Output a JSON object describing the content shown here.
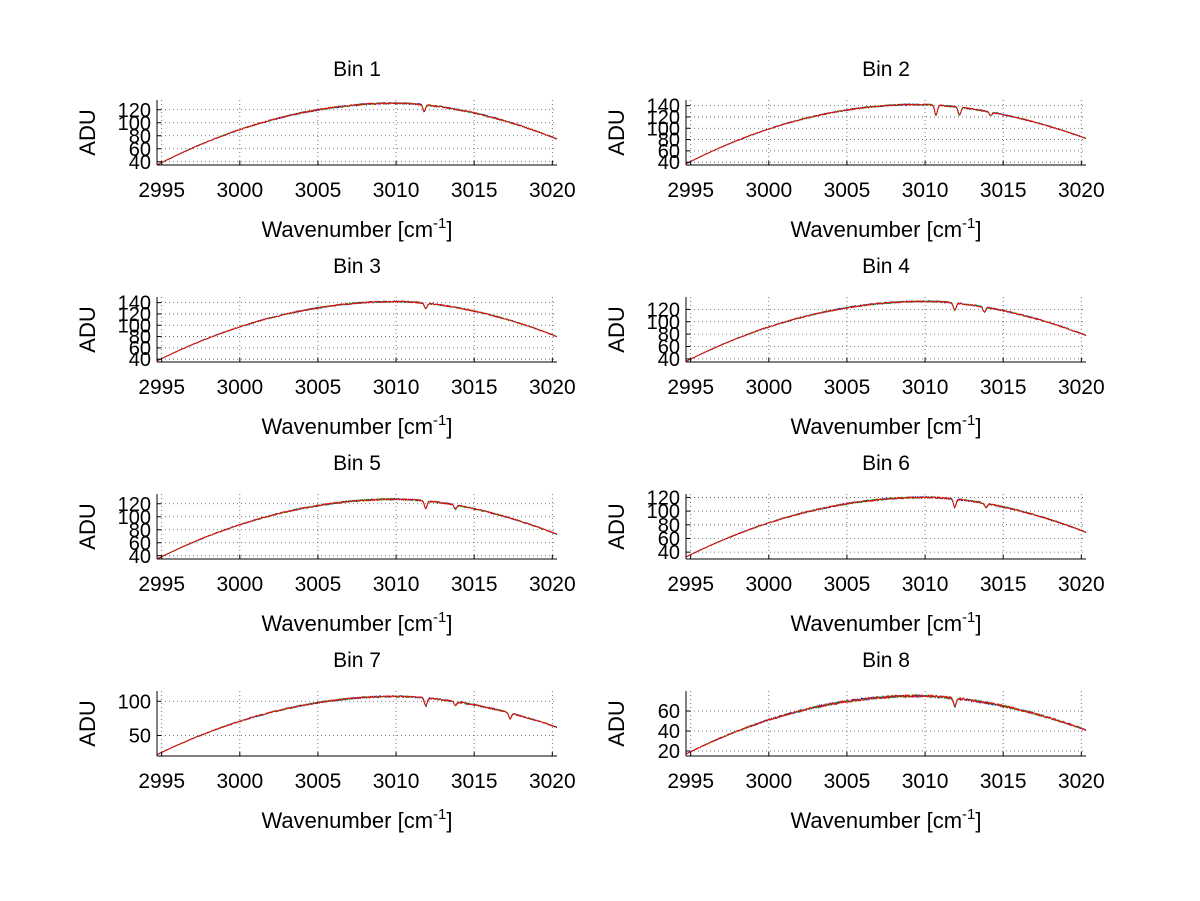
{
  "chart_data": [
    {
      "type": "line",
      "title": "Bin 1",
      "xlabel": "Wavenumber [cm",
      "xlabel_sup": "-1",
      "xlabel_tail": "]",
      "ylabel": "ADU",
      "xlim": [
        2994.7,
        3020.3
      ],
      "ylim": [
        35,
        135
      ],
      "xticks": [
        2995,
        3000,
        3005,
        3010,
        3015,
        3020
      ],
      "yticks": [
        40,
        60,
        80,
        100,
        120
      ],
      "series_colors": [
        "#0000ff",
        "#00aa00",
        "#ff0000"
      ],
      "profile": {
        "start": 35,
        "peak": 130,
        "peak_x": 3010,
        "end": 75
      },
      "dips": [
        {
          "x": 3011.8,
          "depth": 10
        }
      ],
      "grid": true
    },
    {
      "type": "line",
      "title": "Bin 2",
      "xlabel": "Wavenumber [cm",
      "xlabel_sup": "-1",
      "xlabel_tail": "]",
      "ylabel": "ADU",
      "xlim": [
        2994.7,
        3020.3
      ],
      "ylim": [
        35,
        150
      ],
      "xticks": [
        2995,
        3000,
        3005,
        3010,
        3015,
        3020
      ],
      "yticks": [
        40,
        60,
        80,
        100,
        120,
        140
      ],
      "series_colors": [
        "#0000ff",
        "#00aa00",
        "#ff0000"
      ],
      "profile": {
        "start": 37,
        "peak": 142,
        "peak_x": 3009.5,
        "end": 82
      },
      "dips": [
        {
          "x": 3010.7,
          "depth": 18
        },
        {
          "x": 3012.2,
          "depth": 14
        },
        {
          "x": 3014.2,
          "depth": 6
        }
      ],
      "grid": true
    },
    {
      "type": "line",
      "title": "Bin 3",
      "xlabel": "Wavenumber [cm",
      "xlabel_sup": "-1",
      "xlabel_tail": "]",
      "ylabel": "ADU",
      "xlim": [
        2994.7,
        3020.3
      ],
      "ylim": [
        35,
        150
      ],
      "xticks": [
        2995,
        3000,
        3005,
        3010,
        3015,
        3020
      ],
      "yticks": [
        40,
        60,
        80,
        100,
        120,
        140
      ],
      "series_colors": [
        "#0000ff",
        "#00aa00",
        "#ff0000"
      ],
      "profile": {
        "start": 37,
        "peak": 142,
        "peak_x": 3010,
        "end": 80
      },
      "dips": [
        {
          "x": 3011.9,
          "depth": 10
        }
      ],
      "grid": true
    },
    {
      "type": "line",
      "title": "Bin 4",
      "xlabel": "Wavenumber [cm",
      "xlabel_sup": "-1",
      "xlabel_tail": "]",
      "ylabel": "ADU",
      "xlim": [
        2994.7,
        3020.3
      ],
      "ylim": [
        35,
        140
      ],
      "xticks": [
        2995,
        3000,
        3005,
        3010,
        3015,
        3020
      ],
      "yticks": [
        40,
        60,
        80,
        100,
        120
      ],
      "series_colors": [
        "#0000ff",
        "#00aa00",
        "#ff0000"
      ],
      "profile": {
        "start": 36,
        "peak": 133,
        "peak_x": 3010,
        "end": 78
      },
      "dips": [
        {
          "x": 3011.9,
          "depth": 12
        },
        {
          "x": 3013.8,
          "depth": 8
        }
      ],
      "grid": true
    },
    {
      "type": "line",
      "title": "Bin 5",
      "xlabel": "Wavenumber [cm",
      "xlabel_sup": "-1",
      "xlabel_tail": "]",
      "ylabel": "ADU",
      "xlim": [
        2994.7,
        3020.3
      ],
      "ylim": [
        35,
        135
      ],
      "xticks": [
        2995,
        3000,
        3005,
        3010,
        3015,
        3020
      ],
      "yticks": [
        40,
        60,
        80,
        100,
        120
      ],
      "series_colors": [
        "#0000ff",
        "#00aa00",
        "#ff0000"
      ],
      "profile": {
        "start": 35,
        "peak": 127,
        "peak_x": 3010,
        "end": 73
      },
      "dips": [
        {
          "x": 3011.9,
          "depth": 12
        },
        {
          "x": 3013.8,
          "depth": 6
        }
      ],
      "grid": true
    },
    {
      "type": "line",
      "title": "Bin 6",
      "xlabel": "Wavenumber [cm",
      "xlabel_sup": "-1",
      "xlabel_tail": "]",
      "ylabel": "ADU",
      "xlim": [
        2994.7,
        3020.3
      ],
      "ylim": [
        30,
        125
      ],
      "xticks": [
        2995,
        3000,
        3005,
        3010,
        3015,
        3020
      ],
      "yticks": [
        40,
        60,
        80,
        100,
        120
      ],
      "series_colors": [
        "#0000ff",
        "#00aa00",
        "#ff0000"
      ],
      "profile": {
        "start": 33,
        "peak": 120,
        "peak_x": 3010,
        "end": 69
      },
      "dips": [
        {
          "x": 3011.9,
          "depth": 12
        },
        {
          "x": 3013.9,
          "depth": 6
        }
      ],
      "grid": true
    },
    {
      "type": "line",
      "title": "Bin 7",
      "xlabel": "Wavenumber [cm",
      "xlabel_sup": "-1",
      "xlabel_tail": "]",
      "ylabel": "ADU",
      "xlim": [
        2994.7,
        3020.3
      ],
      "ylim": [
        20,
        115
      ],
      "xticks": [
        2995,
        3000,
        3005,
        3010,
        3015,
        3020
      ],
      "yticks": [
        50,
        100
      ],
      "series_colors": [
        "#0000ff",
        "#00aa00",
        "#ff0000"
      ],
      "profile": {
        "start": 22,
        "peak": 107,
        "peak_x": 3010,
        "end": 62
      },
      "dips": [
        {
          "x": 3011.9,
          "depth": 12
        },
        {
          "x": 3013.8,
          "depth": 6
        },
        {
          "x": 3017.3,
          "depth": 8
        }
      ],
      "grid": true
    },
    {
      "type": "line",
      "title": "Bin 8",
      "xlabel": "Wavenumber [cm",
      "xlabel_sup": "-1",
      "xlabel_tail": "]",
      "ylabel": "ADU",
      "xlim": [
        2994.7,
        3020.3
      ],
      "ylim": [
        15,
        80
      ],
      "xticks": [
        2995,
        3000,
        3005,
        3010,
        3015,
        3020
      ],
      "yticks": [
        20,
        40,
        60
      ],
      "series_colors": [
        "#0000ff",
        "#00aa00",
        "#ff0000"
      ],
      "profile": {
        "start": 17,
        "peak": 75,
        "peak_x": 3009.5,
        "end": 41
      },
      "dips": [
        {
          "x": 3011.9,
          "depth": 8
        }
      ],
      "grid": true
    }
  ]
}
